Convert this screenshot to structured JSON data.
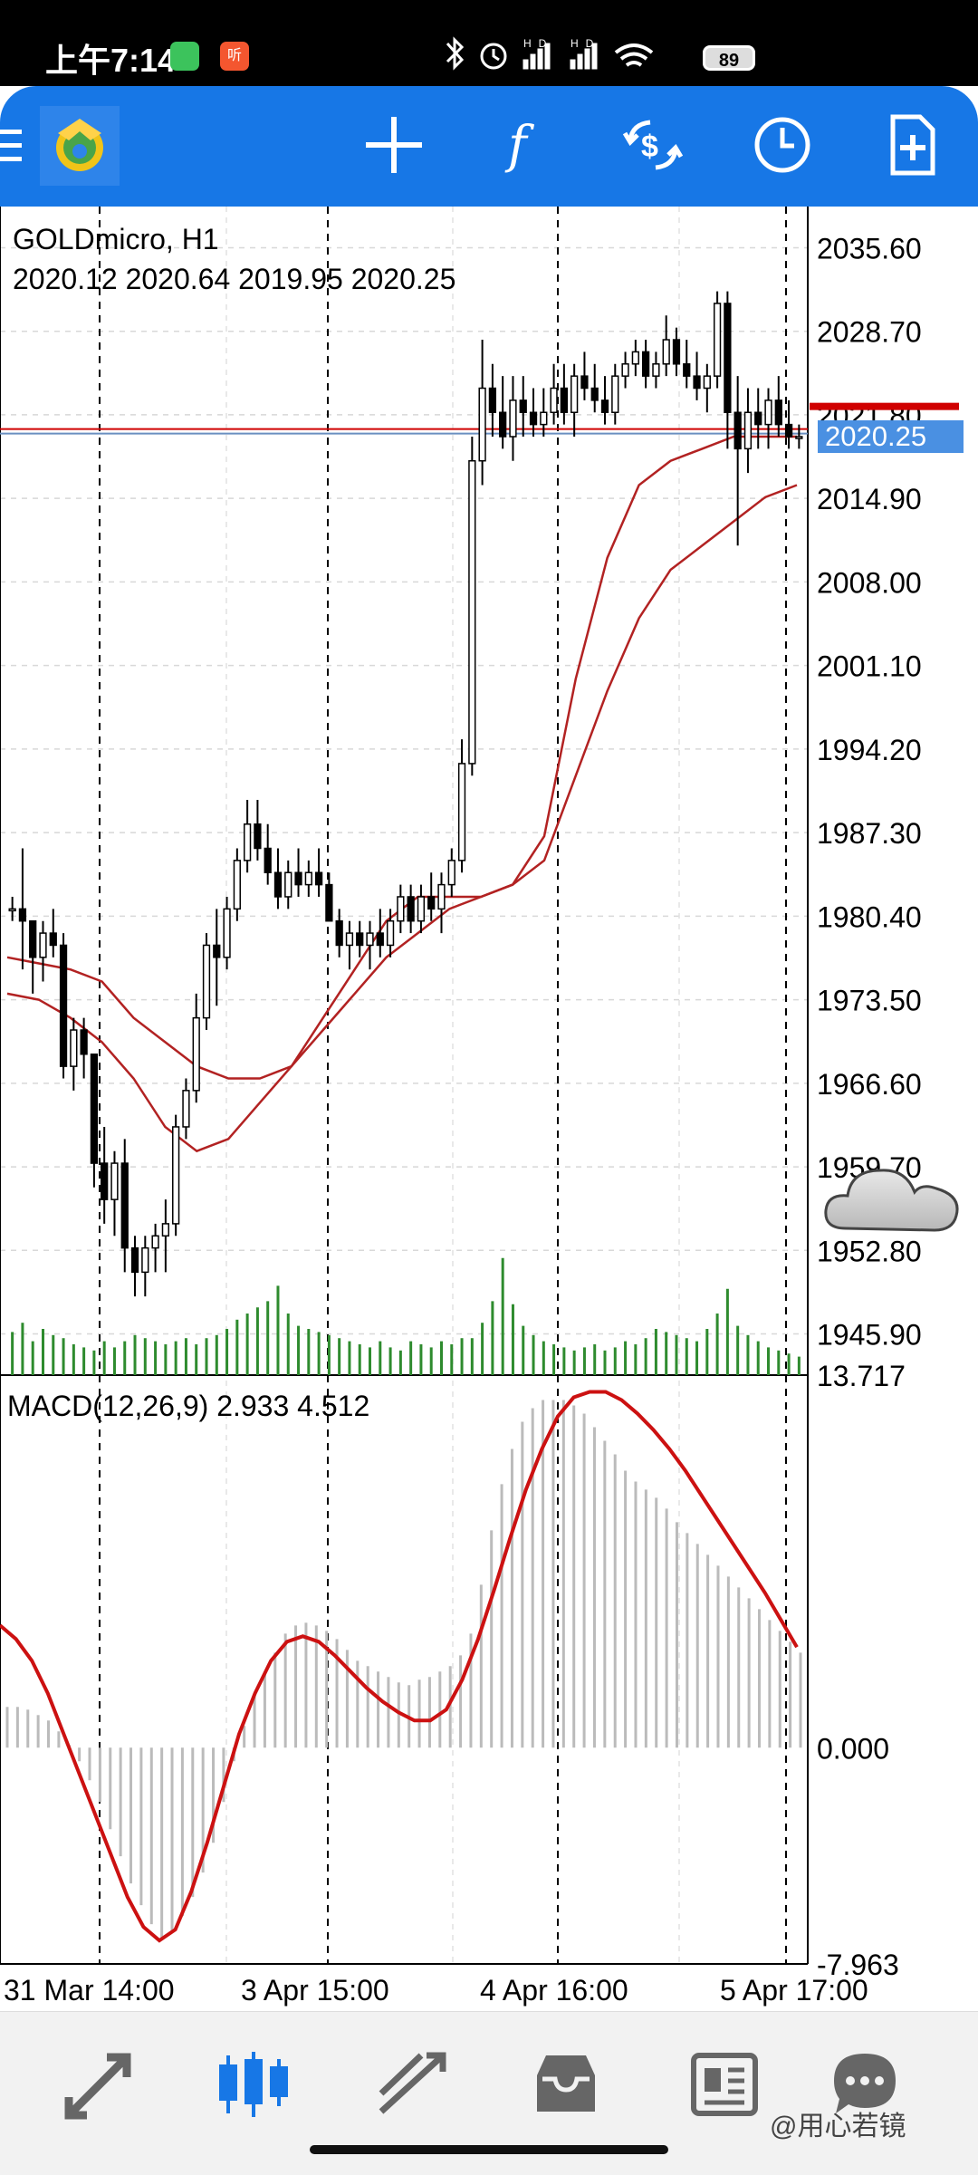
{
  "status_bar": {
    "time": "上午7:14",
    "notification_badge": "听",
    "battery": "89"
  },
  "toolbar": {
    "icons": [
      "menu-icon",
      "metatrader-logo-icon",
      "crosshair-icon",
      "indicators-icon",
      "trade-icon",
      "timeframe-icon",
      "new-order-icon"
    ]
  },
  "chart": {
    "symbol": "GOLDmicro, H1",
    "ohlc": "2020.12 2020.64 2019.95 2020.25",
    "current_price": "2020.25",
    "price_axis": [
      "2035.60",
      "2028.70",
      "2021.80",
      "2014.90",
      "2008.00",
      "2001.10",
      "1994.20",
      "1987.30",
      "1980.40",
      "1973.50",
      "1966.60",
      "1959.70",
      "1952.80",
      "1945.90"
    ],
    "time_axis": [
      "31 Mar 14:00",
      "3 Apr 15:00",
      "4 Apr 16:00",
      "5 Apr 17:00"
    ],
    "macd_label": "MACD(12,26,9) 2.933 4.512",
    "macd_axis": [
      "13.717",
      "0.000",
      "-7.963"
    ],
    "colors": {
      "bull": "#ffffff",
      "bear": "#000000",
      "ma": "#b22222",
      "macd_signal": "#cc1111",
      "macd_hist": "#bbbbbb",
      "volume": "#2e8b2e",
      "price_tag": "#4a90e2",
      "ask_line": "#d00000"
    }
  },
  "chart_data": {
    "type": "candlestick",
    "title": "GOLDmicro, H1",
    "ylim": [
      1942.5,
      2039.0
    ],
    "candles": [
      [
        1981,
        1982,
        1980,
        1981
      ],
      [
        1981,
        1986,
        1976,
        1980
      ],
      [
        1980,
        1980,
        1974,
        1977
      ],
      [
        1977,
        1980,
        1975,
        1979
      ],
      [
        1979,
        1981,
        1977,
        1978
      ],
      [
        1978,
        1979,
        1967,
        1968
      ],
      [
        1968,
        1972,
        1966,
        1971
      ],
      [
        1971,
        1972,
        1967,
        1969
      ],
      [
        1969,
        1969,
        1958,
        1960
      ],
      [
        1960,
        1963,
        1955,
        1957
      ],
      [
        1957,
        1961,
        1954,
        1960
      ],
      [
        1960,
        1962,
        1951,
        1953
      ],
      [
        1953,
        1954,
        1949,
        1951
      ],
      [
        1951,
        1954,
        1949,
        1953
      ],
      [
        1953,
        1955,
        1951,
        1954
      ],
      [
        1954,
        1957,
        1951,
        1955
      ],
      [
        1955,
        1964,
        1954,
        1963
      ],
      [
        1963,
        1967,
        1962,
        1966
      ],
      [
        1966,
        1974,
        1965,
        1972
      ],
      [
        1972,
        1979,
        1971,
        1978
      ],
      [
        1978,
        1981,
        1973,
        1977
      ],
      [
        1977,
        1982,
        1976,
        1981
      ],
      [
        1981,
        1986,
        1980,
        1985
      ],
      [
        1985,
        1990,
        1984,
        1988
      ],
      [
        1988,
        1990,
        1985,
        1986
      ],
      [
        1986,
        1988,
        1983,
        1984
      ],
      [
        1984,
        1986,
        1981,
        1982
      ],
      [
        1982,
        1985,
        1981,
        1984
      ],
      [
        1984,
        1986,
        1982,
        1983
      ],
      [
        1983,
        1985,
        1982,
        1984
      ],
      [
        1984,
        1986,
        1982,
        1983
      ],
      [
        1983,
        1984,
        1980,
        1980
      ],
      [
        1980,
        1981,
        1977,
        1978
      ],
      [
        1978,
        1980,
        1976,
        1979
      ],
      [
        1979,
        1980,
        1977,
        1978
      ],
      [
        1978,
        1980,
        1976,
        1979
      ],
      [
        1979,
        1981,
        1977,
        1978
      ],
      [
        1978,
        1981,
        1977,
        1980
      ],
      [
        1980,
        1983,
        1979,
        1982
      ],
      [
        1982,
        1983,
        1979,
        1980
      ],
      [
        1980,
        1983,
        1979,
        1982
      ],
      [
        1982,
        1984,
        1980,
        1981
      ],
      [
        1981,
        1984,
        1979,
        1983
      ],
      [
        1983,
        1986,
        1982,
        1985
      ],
      [
        1985,
        1995,
        1984,
        1993
      ],
      [
        1993,
        2020,
        1992,
        2018
      ],
      [
        2018,
        2028,
        2016,
        2024
      ],
      [
        2024,
        2026,
        2020,
        2022
      ],
      [
        2022,
        2025,
        2019,
        2020
      ],
      [
        2020,
        2025,
        2018,
        2023
      ],
      [
        2023,
        2025,
        2020,
        2022
      ],
      [
        2022,
        2024,
        2020,
        2021
      ],
      [
        2021,
        2024,
        2020,
        2022
      ],
      [
        2022,
        2026,
        2021,
        2024
      ],
      [
        2024,
        2026,
        2021,
        2022
      ],
      [
        2022,
        2026,
        2020,
        2025
      ],
      [
        2025,
        2027,
        2023,
        2024
      ],
      [
        2024,
        2026,
        2022,
        2023
      ],
      [
        2023,
        2025,
        2021,
        2022
      ],
      [
        2022,
        2026,
        2021,
        2025
      ],
      [
        2025,
        2027,
        2024,
        2026
      ],
      [
        2026,
        2028,
        2025,
        2027
      ],
      [
        2027,
        2028,
        2024,
        2025
      ],
      [
        2025,
        2027,
        2024,
        2026
      ],
      [
        2026,
        2030,
        2025,
        2028
      ],
      [
        2028,
        2029,
        2025,
        2026
      ],
      [
        2026,
        2028,
        2024,
        2025
      ],
      [
        2025,
        2027,
        2023,
        2024
      ],
      [
        2024,
        2026,
        2022,
        2025
      ],
      [
        2025,
        2032,
        2024,
        2031
      ],
      [
        2031,
        2032,
        2019,
        2022
      ],
      [
        2022,
        2025,
        2011,
        2019
      ],
      [
        2019,
        2024,
        2017,
        2022
      ],
      [
        2022,
        2024,
        2019,
        2021
      ],
      [
        2021,
        2024,
        2019,
        2023
      ],
      [
        2023,
        2025,
        2020,
        2021
      ],
      [
        2021,
        2023,
        2019,
        2020
      ],
      [
        2020,
        2021,
        2019,
        2020
      ]
    ],
    "moving_averages": [
      {
        "period": "fast",
        "values": [
          1977,
          1976.5,
          1976,
          1975,
          1972,
          1970,
          1968,
          1967,
          1967,
          1968,
          1972,
          1976,
          1980,
          1982,
          1982,
          1982,
          1983,
          1987,
          2000,
          2010,
          2016,
          2018,
          2019,
          2020,
          2020,
          2020
        ]
      },
      {
        "period": "slow",
        "values": [
          1974,
          1973.5,
          1972,
          1970,
          1967,
          1963,
          1961,
          1962,
          1965,
          1968,
          1971,
          1974,
          1977,
          1979,
          1981,
          1982,
          1983,
          1985,
          1992,
          1999,
          2005,
          2009,
          2011,
          2013,
          2015,
          2016
        ]
      }
    ],
    "volume": [
      28,
      34,
      22,
      30,
      26,
      24,
      20,
      18,
      16,
      22,
      18,
      22,
      26,
      24,
      22,
      20,
      22,
      24,
      20,
      24,
      26,
      30,
      36,
      40,
      44,
      48,
      58,
      40,
      32,
      30,
      28,
      26,
      24,
      22,
      20,
      18,
      22,
      18,
      16,
      22,
      20,
      18,
      22,
      20,
      24,
      24,
      34,
      48,
      76,
      46,
      32,
      26,
      22,
      20,
      18,
      16,
      18,
      20,
      16,
      18,
      22,
      20,
      24,
      30,
      28,
      26,
      24,
      22,
      30,
      40,
      56,
      32,
      26,
      22,
      18,
      16,
      14,
      12
    ],
    "macd": {
      "label": "MACD(12,26,9)",
      "value": 2.933,
      "signal": 4.512,
      "ylim": [
        -7.963,
        13.717
      ],
      "histogram": [
        1.5,
        1.5,
        1.4,
        1.2,
        1.0,
        0.6,
        0.1,
        -0.5,
        -1.2,
        -2.0,
        -3.0,
        -4.0,
        -5.0,
        -5.8,
        -6.5,
        -7.0,
        -6.8,
        -6.2,
        -5.5,
        -4.6,
        -3.5,
        -2.0,
        -0.5,
        0.8,
        2.0,
        2.8,
        3.5,
        4.2,
        4.5,
        4.6,
        4.5,
        4.3,
        4.0,
        3.6,
        3.2,
        3.0,
        2.8,
        2.6,
        2.4,
        2.3,
        2.5,
        2.6,
        2.8,
        3.0,
        3.4,
        4.2,
        6.0,
        8.0,
        9.7,
        11.0,
        12.0,
        12.5,
        12.8,
        12.8,
        12.8,
        12.6,
        12.3,
        11.8,
        11.3,
        10.8,
        10.2,
        9.8,
        9.5,
        9.2,
        8.8,
        8.3,
        7.9,
        7.5,
        7.1,
        6.7,
        6.3,
        5.9,
        5.5,
        5.1,
        4.7,
        4.3,
        3.9,
        3.5
      ],
      "signal_line": [
        4.5,
        4.0,
        3.2,
        2.0,
        0.5,
        -1.0,
        -2.5,
        -4.0,
        -5.5,
        -6.6,
        -7.1,
        -6.7,
        -5.3,
        -3.5,
        -1.5,
        0.5,
        2.0,
        3.2,
        3.9,
        4.1,
        3.9,
        3.4,
        2.8,
        2.2,
        1.7,
        1.3,
        1.0,
        1.0,
        1.4,
        2.5,
        4.0,
        5.8,
        7.7,
        9.5,
        11.0,
        12.2,
        12.9,
        13.1,
        13.1,
        12.8,
        12.3,
        11.7,
        11.0,
        10.2,
        9.3,
        8.4,
        7.5,
        6.6,
        5.7,
        4.7,
        3.7
      ]
    }
  },
  "bottom_nav": {
    "items": [
      "quotes-icon",
      "chart-icon",
      "trade-icon",
      "history-icon",
      "news-icon",
      "chat-icon"
    ],
    "active": 1
  },
  "watermark": "@用心若镜"
}
